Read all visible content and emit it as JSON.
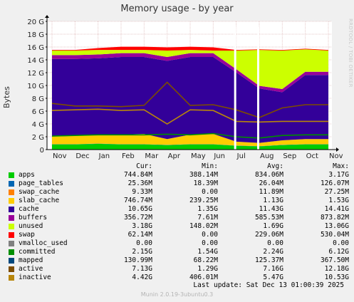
{
  "chart_data": {
    "type": "area",
    "title": "Memory usage - by year",
    "ylabel": "Bytes",
    "side_credit": "RRDTOOL / TOBI OETIKER",
    "ylim": [
      0,
      20
    ],
    "yticks": [
      "0",
      "2 G",
      "4 G",
      "6 G",
      "8 G",
      "10 G",
      "12 G",
      "14 G",
      "16 G",
      "18 G",
      "20 G"
    ],
    "categories": [
      "Nov",
      "Dec",
      "Jan",
      "Feb",
      "Mar",
      "Apr",
      "May",
      "Jun",
      "Jul",
      "Aug",
      "Sep",
      "Oct",
      "Nov"
    ],
    "x": [
      "Nov",
      "Dec",
      "Jan",
      "Feb",
      "Mar",
      "Apr",
      "May",
      "Jun",
      "Jul",
      "Aug",
      "Sep",
      "Oct",
      "Nov"
    ],
    "gaps": [
      "Jul",
      "Aug"
    ],
    "stacked_series": [
      {
        "name": "apps",
        "color": "#00cc00",
        "values": [
          0.8,
          0.8,
          0.9,
          0.8,
          0.8,
          0.7,
          0.8,
          0.8,
          0.6,
          0.5,
          0.7,
          0.8,
          0.8
        ]
      },
      {
        "name": "page_tables",
        "color": "#0066b3",
        "values": [
          0.03,
          0.03,
          0.03,
          0.03,
          0.03,
          0.03,
          0.03,
          0.03,
          0.03,
          0.03,
          0.03,
          0.03,
          0.03
        ]
      },
      {
        "name": "swap_cache",
        "color": "#ff8000",
        "values": [
          0.01,
          0.01,
          0.01,
          0.01,
          0.01,
          0.01,
          0.01,
          0.01,
          0.01,
          0.01,
          0.01,
          0.01,
          0.01
        ]
      },
      {
        "name": "slab_cache",
        "color": "#ffcc00",
        "values": [
          1.2,
          1.3,
          1.4,
          1.5,
          1.6,
          0.9,
          1.5,
          1.6,
          0.6,
          0.5,
          0.7,
          0.8,
          0.8
        ]
      },
      {
        "name": "cache",
        "color": "#330099",
        "values": [
          12.1,
          12.0,
          11.9,
          12.1,
          12.0,
          12.2,
          12.1,
          12.0,
          10.8,
          8.5,
          7.5,
          10.0,
          10.0
        ]
      },
      {
        "name": "buffers",
        "color": "#990099",
        "values": [
          0.6,
          0.6,
          0.6,
          0.6,
          0.6,
          0.6,
          0.6,
          0.6,
          0.5,
          0.4,
          0.5,
          0.5,
          0.5
        ]
      },
      {
        "name": "unused",
        "color": "#ccff00",
        "values": [
          0.7,
          0.7,
          0.7,
          0.5,
          0.5,
          1.0,
          0.5,
          0.4,
          2.9,
          5.6,
          6.0,
          3.5,
          3.3
        ]
      },
      {
        "name": "swap",
        "color": "#ff0000",
        "values": [
          0.1,
          0.1,
          0.3,
          0.5,
          0.5,
          0.5,
          0.5,
          0.5,
          0.1,
          0.1,
          0.1,
          0.1,
          0.1
        ]
      }
    ],
    "line_series": [
      {
        "name": "committed",
        "color": "#008f00",
        "values": [
          2.1,
          2.2,
          2.3,
          2.3,
          2.3,
          2.4,
          2.3,
          2.5,
          2.0,
          1.8,
          2.2,
          2.3,
          2.3
        ]
      },
      {
        "name": "active",
        "color": "#7d4d00",
        "values": [
          7.2,
          6.8,
          6.8,
          6.7,
          6.9,
          10.5,
          6.9,
          7.0,
          6.2,
          5.0,
          6.5,
          7.0,
          7.0
        ]
      },
      {
        "name": "inactive",
        "color": "#b8860b",
        "values": [
          6.1,
          6.2,
          6.3,
          6.1,
          6.2,
          4.0,
          6.2,
          6.1,
          4.4,
          4.3,
          4.4,
          4.4,
          4.4
        ]
      }
    ],
    "legend_header": {
      "cur": "Cur:",
      "min": "Min:",
      "avg": "Avg:",
      "max": "Max:"
    },
    "legend": [
      {
        "name": "apps",
        "color": "#00cc00",
        "cur": "744.84M",
        "min": "388.14M",
        "avg": "834.06M",
        "max": "3.17G"
      },
      {
        "name": "page_tables",
        "color": "#0066b3",
        "cur": "25.36M",
        "min": "18.39M",
        "avg": "26.04M",
        "max": "126.07M"
      },
      {
        "name": "swap_cache",
        "color": "#ff8000",
        "cur": "9.33M",
        "min": "0.00",
        "avg": "11.89M",
        "max": "27.25M"
      },
      {
        "name": "slab_cache",
        "color": "#ffcc00",
        "cur": "746.74M",
        "min": "239.25M",
        "avg": "1.13G",
        "max": "1.53G"
      },
      {
        "name": "cache",
        "color": "#330099",
        "cur": "10.65G",
        "min": "1.35G",
        "avg": "11.43G",
        "max": "14.41G"
      },
      {
        "name": "buffers",
        "color": "#990099",
        "cur": "356.72M",
        "min": "7.61M",
        "avg": "585.53M",
        "max": "873.82M"
      },
      {
        "name": "unused",
        "color": "#ccff00",
        "cur": "3.18G",
        "min": "148.02M",
        "avg": "1.69G",
        "max": "13.06G"
      },
      {
        "name": "swap",
        "color": "#ff0000",
        "cur": "62.14M",
        "min": "0.00",
        "avg": "229.06M",
        "max": "530.04M"
      },
      {
        "name": "vmalloc_used",
        "color": "#808080",
        "cur": "0.00",
        "min": "0.00",
        "avg": "0.00",
        "max": "0.00"
      },
      {
        "name": "committed",
        "color": "#008f00",
        "cur": "2.15G",
        "min": "1.54G",
        "avg": "2.24G",
        "max": "6.12G"
      },
      {
        "name": "mapped",
        "color": "#00487d",
        "cur": "130.99M",
        "min": "68.22M",
        "avg": "125.37M",
        "max": "367.50M"
      },
      {
        "name": "active",
        "color": "#7d4d00",
        "cur": "7.13G",
        "min": "1.29G",
        "avg": "7.16G",
        "max": "12.18G"
      },
      {
        "name": "inactive",
        "color": "#b8860b",
        "cur": "4.42G",
        "min": "406.01M",
        "avg": "5.47G",
        "max": "10.53G"
      }
    ],
    "last_update": "Last update:  Sat Dec 13 01:00:39 2025",
    "footer": "Munin 2.0.19-3ubuntu0.3"
  }
}
